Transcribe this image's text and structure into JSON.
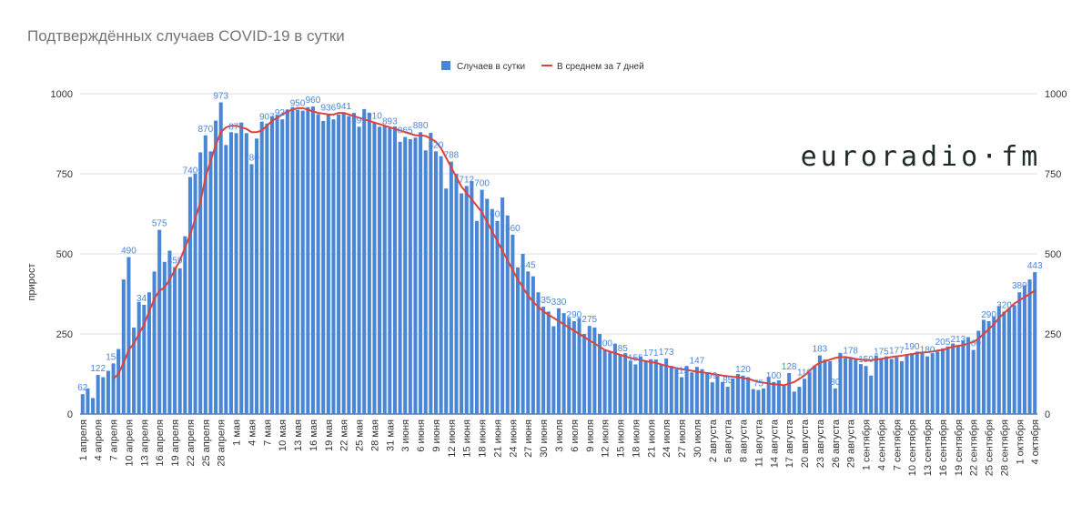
{
  "chart_data": {
    "type": "bar",
    "title": "Подтверждённых случаев COVID-19 в сутки",
    "y_label": "прирост",
    "logo": "euroradio·fm",
    "categories": [
      "1 апреля",
      null,
      null,
      "4 апреля",
      null,
      null,
      "7 апреля",
      null,
      null,
      "10 апреля",
      null,
      null,
      "13 апреля",
      null,
      null,
      "16 апреля",
      null,
      null,
      "19 апреля",
      null,
      null,
      "22 апреля",
      null,
      null,
      "25 апреля",
      null,
      null,
      "28 апреля",
      null,
      null,
      "1 мая",
      null,
      null,
      "4 мая",
      null,
      null,
      "7 мая",
      null,
      null,
      "10 мая",
      null,
      null,
      "13 мая",
      null,
      null,
      "16 мая",
      null,
      null,
      "19 мая",
      null,
      null,
      "22 мая",
      null,
      null,
      "25 мая",
      null,
      null,
      "28 мая",
      null,
      null,
      "31 мая",
      null,
      null,
      "3 июня",
      null,
      null,
      "6 июня",
      null,
      null,
      "9 июня",
      null,
      null,
      "12 июня",
      null,
      null,
      "15 июня",
      null,
      null,
      "18 июня",
      null,
      null,
      "21 июня",
      null,
      null,
      "24 июня",
      null,
      null,
      "27 июня",
      null,
      null,
      "30 июня",
      null,
      null,
      "3 июля",
      null,
      null,
      "6 июля",
      null,
      null,
      "9 июля",
      null,
      null,
      "12 июля",
      null,
      null,
      "15 июля",
      null,
      null,
      "18 июля",
      null,
      null,
      "21 июля",
      null,
      null,
      "24 июля",
      null,
      null,
      "27 июля",
      null,
      null,
      "30 июля",
      null,
      null,
      "2 августа",
      null,
      null,
      "5 августа",
      null,
      null,
      "8 августа",
      null,
      null,
      "11 августа",
      null,
      null,
      "14 августа",
      null,
      null,
      "17 августа",
      null,
      null,
      "20 августа",
      null,
      null,
      "23 августа",
      null,
      null,
      "26 августа",
      null,
      null,
      "29 августа",
      null,
      null,
      "1 сентября",
      null,
      null,
      "4 сентября",
      null,
      null,
      "7 сентября",
      null,
      null,
      "10 сентября",
      null,
      null,
      "13 сентября",
      null,
      null,
      "16 сентября",
      null,
      null,
      "19 сентября",
      null,
      null,
      "22 сентября",
      null,
      null,
      "25 сентября",
      null,
      null,
      "28 сентября",
      null,
      null,
      "1 октября",
      null,
      null,
      "4 октября"
    ],
    "series": [
      {
        "name": "Случаев в сутки",
        "color": "#4a86d6",
        "values": [
          62,
          80,
          50,
          122,
          115,
          135,
          158,
          203,
          420,
          490,
          270,
          350,
          341,
          380,
          445,
          575,
          475,
          510,
          459,
          455,
          555,
          740,
          750,
          817,
          870,
          820,
          916,
          973,
          840,
          880,
          877,
          910,
          877,
          780,
          860,
          913,
          907,
          930,
          933,
          920,
          950,
          958,
          950,
          947,
          958,
          960,
          936,
          915,
          936,
          920,
          935,
          941,
          930,
          940,
          897,
          952,
          940,
          910,
          897,
          898,
          893,
          898,
          850,
          865,
          858,
          863,
          880,
          823,
          878,
          820,
          805,
          704,
          788,
          750,
          689,
          712,
          727,
          603,
          700,
          672,
          640,
          603,
          676,
          620,
          560,
          458,
          500,
          445,
          430,
          380,
          335,
          320,
          274,
          330,
          315,
          300,
          290,
          300,
          250,
          275,
          270,
          250,
          200,
          193,
          220,
          185,
          190,
          165,
          155,
          180,
          165,
          171,
          170,
          155,
          173,
          150,
          140,
          115,
          150,
          130,
          147,
          140,
          130,
          99,
          120,
          100,
          85,
          111,
          125,
          120,
          115,
          78,
          75,
          80,
          116,
          100,
          105,
          90,
          128,
          70,
          85,
          110,
          130,
          150,
          183,
          170,
          165,
          80,
          191,
          175,
          178,
          170,
          156,
          150,
          120,
          183,
          175,
          180,
          172,
          177,
          165,
          185,
          190,
          195,
          191,
          180,
          190,
          195,
          205,
          211,
          220,
          213,
          230,
          240,
          200,
          260,
          294,
          290,
          305,
          337,
          320,
          330,
          340,
          380,
          402,
          420,
          443
        ]
      },
      {
        "name": "В среднем за 7 дней",
        "color": "#e0413a",
        "type": "line",
        "values": [
          null,
          null,
          null,
          null,
          null,
          null,
          110,
          125,
          160,
          200,
          220,
          250,
          280,
          320,
          360,
          385,
          395,
          420,
          450,
          480,
          520,
          560,
          610,
          660,
          740,
          790,
          840,
          880,
          895,
          900,
          900,
          895,
          890,
          880,
          880,
          885,
          900,
          915,
          925,
          935,
          945,
          950,
          955,
          955,
          950,
          945,
          940,
          938,
          935,
          935,
          940,
          940,
          935,
          930,
          925,
          920,
          915,
          910,
          905,
          900,
          895,
          890,
          885,
          880,
          875,
          870,
          870,
          868,
          860,
          850,
          830,
          800,
          770,
          740,
          710,
          690,
          670,
          650,
          630,
          600,
          570,
          540,
          510,
          480,
          450,
          420,
          395,
          370,
          350,
          335,
          320,
          310,
          300,
          290,
          280,
          270,
          260,
          250,
          240,
          230,
          220,
          210,
          200,
          195,
          190,
          185,
          180,
          175,
          172,
          168,
          165,
          162,
          160,
          155,
          150,
          147,
          143,
          140,
          138,
          135,
          132,
          130,
          128,
          125,
          123,
          120,
          118,
          116,
          115,
          112,
          110,
          105,
          100,
          98,
          95,
          93,
          92,
          90,
          95,
          100,
          110,
          120,
          135,
          150,
          160,
          165,
          170,
          175,
          178,
          178,
          175,
          172,
          170,
          168,
          168,
          170,
          172,
          175,
          178,
          180,
          182,
          185,
          187,
          190,
          192,
          193,
          195,
          198,
          200,
          205,
          210,
          213,
          215,
          220,
          225,
          235,
          250,
          265,
          280,
          300,
          315,
          330,
          345,
          355,
          365,
          375,
          385
        ]
      }
    ],
    "ylim": [
      0,
      1000
    ],
    "yticks": [
      0,
      250,
      500,
      750,
      1000
    ],
    "y2lim": [
      0,
      1000
    ],
    "y2ticks": [
      0,
      250,
      500,
      750,
      1000
    ],
    "grid": true
  }
}
